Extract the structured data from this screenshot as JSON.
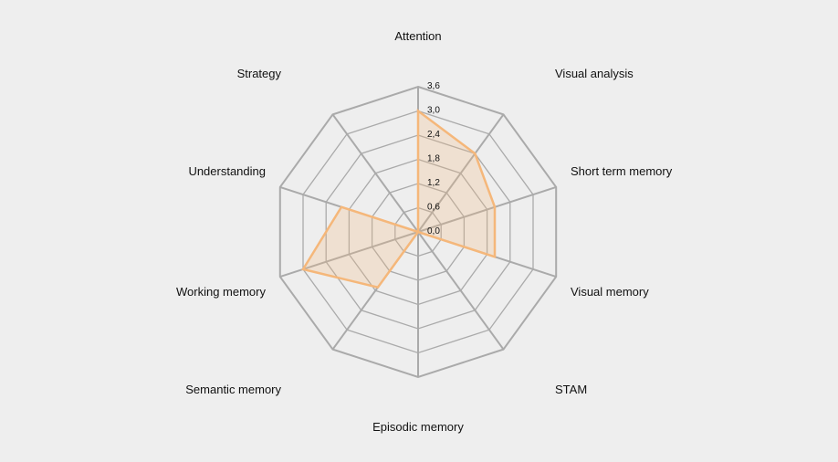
{
  "chart_data": {
    "type": "radar",
    "title": "",
    "axes": [
      "Attention",
      "Visual analysis",
      "Short term memory",
      "Visual memory",
      "STAM",
      "Episodic memory",
      "Semantic memory",
      "Working memory",
      "Understanding",
      "Strategy"
    ],
    "rlim": [
      0,
      3.6
    ],
    "ticks": [
      "0,0",
      "0,6",
      "1,2",
      "1,8",
      "2,4",
      "3,0",
      "3,6"
    ],
    "tick_values": [
      0,
      0.6,
      1.2,
      1.8,
      2.4,
      3.0,
      3.6
    ],
    "grid": true,
    "series": [
      {
        "values": [
          3.0,
          2.4,
          2.0,
          2.0,
          0.0,
          0.0,
          1.7,
          3.0,
          2.0,
          0.0
        ],
        "stroke": "#f5b77a",
        "fill": "#f5b77a"
      }
    ],
    "colors": {
      "grid": "#aaaaaa",
      "background": "#eeeeee"
    }
  }
}
